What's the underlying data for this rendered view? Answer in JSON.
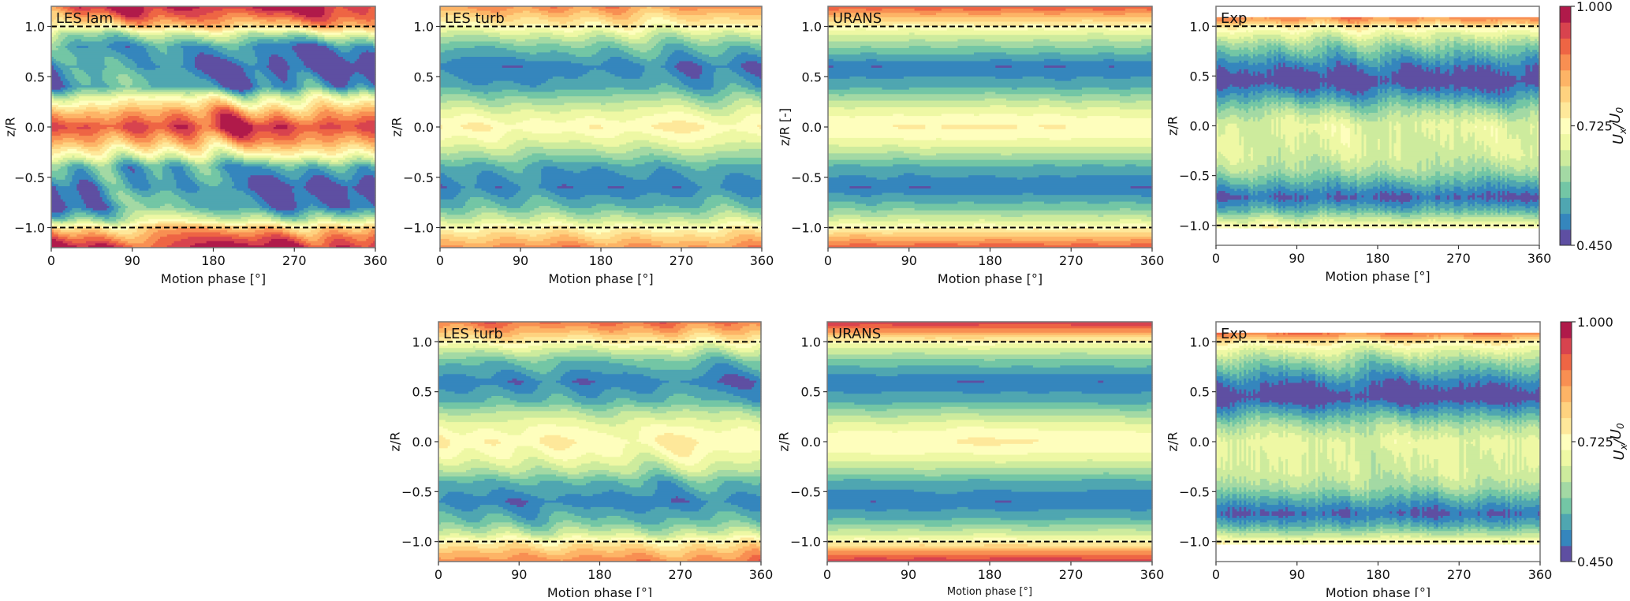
{
  "chart_data": {
    "type": "heatmap",
    "variable": "filled contour of Ux/U0 over motion phase and z/R",
    "xlim": [
      0,
      360
    ],
    "ylim": [
      -1.2,
      1.2
    ],
    "xticks": [
      "0",
      "90",
      "180",
      "270",
      "360"
    ],
    "xtick_values": [
      0,
      90,
      180,
      270,
      360
    ],
    "yticks": [
      "−1.0",
      "−0.5",
      "0.0",
      "0.5",
      "1.0"
    ],
    "ytick_values": [
      -1.0,
      -0.5,
      0.0,
      0.5,
      1.0
    ],
    "reference_lines_z": [
      1.0,
      -1.0
    ],
    "colormap": "Spectral_r",
    "levels": 15,
    "clim": [
      0.45,
      1.0
    ],
    "band_colors": [
      "#5e4fa2",
      "#3586bd",
      "#4fa6b1",
      "#73c6a5",
      "#a3d9a4",
      "#cdeb9d",
      "#eef8a4",
      "#fefebd",
      "#fee89a",
      "#fed27f",
      "#fdb466",
      "#f88f52",
      "#ee6544",
      "#d8434e",
      "#b01a4a"
    ],
    "colorbars": [
      {
        "ticks": [
          "1.000",
          "0.725",
          "0.450"
        ],
        "tick_values": [
          1.0,
          0.725,
          0.45
        ],
        "label": {
          "u1": "U",
          "s1": "x",
          "slash": "/",
          "u2": "U",
          "s2": "0"
        }
      },
      {
        "ticks": [
          "1.000",
          "0.725",
          "0.450"
        ],
        "tick_values": [
          1.0,
          0.725,
          0.45
        ],
        "label": {
          "u1": "U",
          "s1": "x",
          "slash": "/",
          "u2": "U",
          "s2": "0"
        }
      }
    ],
    "panels": [
      {
        "label": "LES lam",
        "row": 1,
        "ylabel": "z/R",
        "xlabel": "Motion phase [°]",
        "profile": {
          "z": [
            1.2,
            1.1,
            1.0,
            0.92,
            0.8,
            0.6,
            0.4,
            0.3,
            0.15,
            0,
            -0.15,
            -0.3,
            -0.4,
            -0.6,
            -0.8,
            -0.92,
            -1.0,
            -1.1,
            -1.2
          ],
          "u": [
            0.97,
            0.9,
            0.8,
            0.64,
            0.5,
            0.46,
            0.52,
            0.68,
            0.84,
            0.95,
            0.84,
            0.68,
            0.54,
            0.46,
            0.5,
            0.64,
            0.8,
            0.9,
            0.97
          ]
        }
      },
      {
        "label": "LES turb",
        "row": 1,
        "ylabel": "z/R",
        "xlabel": "Motion phase [°]",
        "profile": {
          "z": [
            1.2,
            1.1,
            1.0,
            0.92,
            0.8,
            0.6,
            0.4,
            0.3,
            0.15,
            0,
            -0.15,
            -0.3,
            -0.4,
            -0.6,
            -0.8,
            -0.92,
            -1.0,
            -1.1,
            -1.2
          ],
          "u": [
            0.87,
            0.8,
            0.73,
            0.66,
            0.58,
            0.5,
            0.54,
            0.6,
            0.68,
            0.74,
            0.68,
            0.6,
            0.54,
            0.5,
            0.57,
            0.65,
            0.73,
            0.8,
            0.87
          ]
        }
      },
      {
        "label": "URANS",
        "row": 1,
        "ylabel": "z/R [-]",
        "xlabel": "Motion phase [°]",
        "profile": {
          "z": [
            1.2,
            1.1,
            1.0,
            0.92,
            0.8,
            0.6,
            0.4,
            0.3,
            0.15,
            0,
            -0.15,
            -0.3,
            -0.4,
            -0.6,
            -0.8,
            -0.92,
            -1.0,
            -1.1,
            -1.2
          ],
          "u": [
            0.92,
            0.83,
            0.73,
            0.67,
            0.6,
            0.49,
            0.55,
            0.61,
            0.69,
            0.74,
            0.69,
            0.61,
            0.55,
            0.49,
            0.58,
            0.66,
            0.73,
            0.83,
            0.92
          ]
        }
      },
      {
        "label": "Exp",
        "row": 1,
        "ylabel": "z/R",
        "xlabel": "Motion phase [°]",
        "data_zrange": [
          -1.03,
          1.1
        ],
        "profile": {
          "z": [
            1.1,
            1.05,
            1.0,
            0.92,
            0.8,
            0.6,
            0.45,
            0.3,
            0.15,
            0,
            -0.15,
            -0.3,
            -0.45,
            -0.6,
            -0.72,
            -0.85,
            -0.95,
            -1.0,
            -1.03
          ],
          "u": [
            0.88,
            0.84,
            0.75,
            0.68,
            0.6,
            0.5,
            0.45,
            0.53,
            0.62,
            0.68,
            0.67,
            0.66,
            0.62,
            0.54,
            0.48,
            0.56,
            0.66,
            0.72,
            0.73
          ]
        }
      },
      {
        "label": "LES turb",
        "row": 2,
        "ylabel": "z/R",
        "xlabel": "Motion phase [°]",
        "profile": {
          "z": [
            1.2,
            1.1,
            1.0,
            0.92,
            0.8,
            0.6,
            0.4,
            0.3,
            0.15,
            0,
            -0.15,
            -0.3,
            -0.4,
            -0.6,
            -0.8,
            -0.92,
            -1.0,
            -1.1,
            -1.2
          ],
          "u": [
            0.9,
            0.83,
            0.74,
            0.66,
            0.57,
            0.5,
            0.56,
            0.63,
            0.7,
            0.74,
            0.7,
            0.63,
            0.56,
            0.5,
            0.57,
            0.65,
            0.74,
            0.82,
            0.88
          ]
        }
      },
      {
        "label": "URANS",
        "row": 2,
        "ylabel": "z/R",
        "xlabel": "Motion phase [°]",
        "profile": {
          "z": [
            1.2,
            1.1,
            1.0,
            0.92,
            0.8,
            0.6,
            0.4,
            0.3,
            0.15,
            0,
            -0.15,
            -0.3,
            -0.4,
            -0.6,
            -0.8,
            -0.92,
            -1.0,
            -1.1,
            -1.2
          ],
          "u": [
            0.96,
            0.86,
            0.73,
            0.66,
            0.58,
            0.49,
            0.55,
            0.61,
            0.69,
            0.74,
            0.69,
            0.61,
            0.55,
            0.49,
            0.57,
            0.66,
            0.73,
            0.86,
            0.96
          ]
        }
      },
      {
        "label": "Exp",
        "row": 2,
        "ylabel": "z/R",
        "xlabel": "Motion phase [°]",
        "data_zrange": [
          -1.03,
          1.1
        ],
        "profile": {
          "z": [
            1.1,
            1.05,
            1.0,
            0.92,
            0.8,
            0.6,
            0.45,
            0.3,
            0.15,
            0,
            -0.15,
            -0.3,
            -0.45,
            -0.6,
            -0.72,
            -0.85,
            -0.95,
            -1.0,
            -1.03
          ],
          "u": [
            0.9,
            0.85,
            0.75,
            0.68,
            0.6,
            0.5,
            0.45,
            0.54,
            0.63,
            0.68,
            0.67,
            0.66,
            0.62,
            0.54,
            0.48,
            0.56,
            0.66,
            0.72,
            0.73
          ]
        }
      }
    ]
  }
}
